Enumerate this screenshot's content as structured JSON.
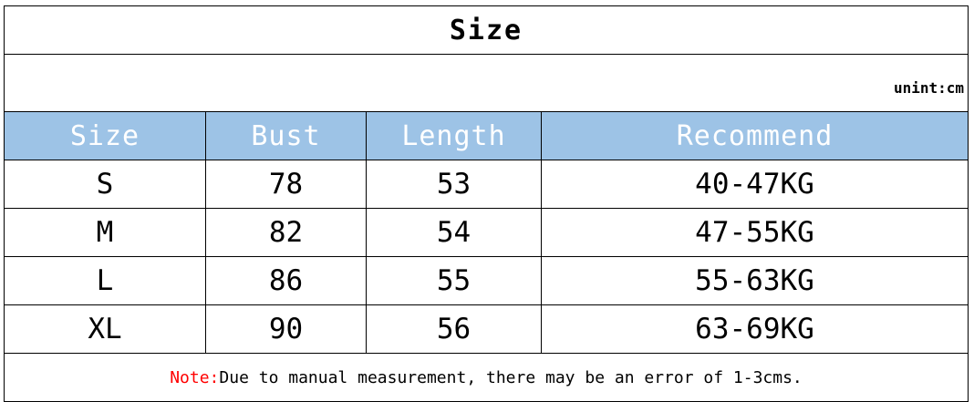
{
  "title": "Size",
  "unit": "unint:cm",
  "headers": [
    "Size",
    "Bust",
    "Length",
    "Recommend"
  ],
  "rows": [
    [
      "S",
      "78",
      "53",
      "40-47KG"
    ],
    [
      "M",
      "82",
      "54",
      "47-55KG"
    ],
    [
      "L",
      "86",
      "55",
      "55-63KG"
    ],
    [
      "XL",
      "90",
      "56",
      "63-69KG"
    ]
  ],
  "note": {
    "label": "Note:",
    "text": "Due to manual measurement, there may be an error of 1-3cms."
  },
  "colors": {
    "header_bg": "#9dc3e6",
    "note_label": "#ff0000"
  }
}
